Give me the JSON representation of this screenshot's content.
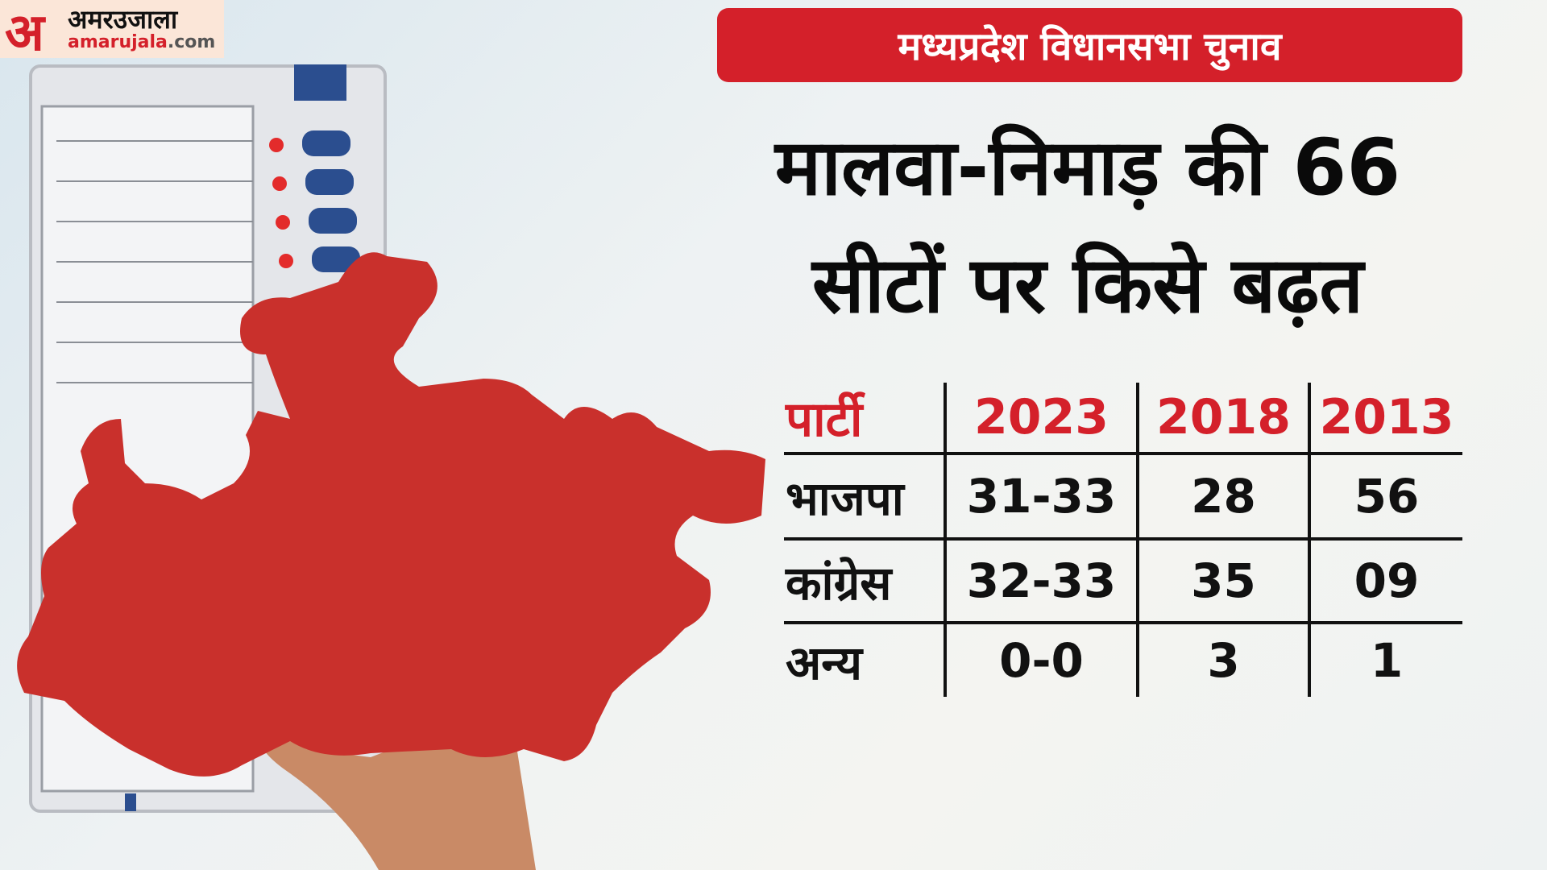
{
  "logo": {
    "mark": "अ",
    "hindi": "अमरउजाला",
    "site_main": "amarujala",
    "site_tld": ".com"
  },
  "banner": "मध्यप्रदेश विधानसभा चुनाव",
  "title": {
    "line1": "मालवा-निमाड़ की 66",
    "line2": "सीटों पर किसे बढ़त"
  },
  "table": {
    "headers": [
      "पार्टी",
      "2023",
      "2018",
      "2013"
    ],
    "rows": [
      {
        "party": "भाजपा",
        "values": [
          "31-33",
          "28",
          "56"
        ]
      },
      {
        "party": "कांग्रेस",
        "values": [
          "32-33",
          "35",
          "09"
        ]
      },
      {
        "party": "अन्य",
        "values": [
          "0-0",
          "3",
          "1"
        ]
      }
    ]
  },
  "colors": {
    "accent": "#d4202a",
    "map": "#c9302c"
  }
}
